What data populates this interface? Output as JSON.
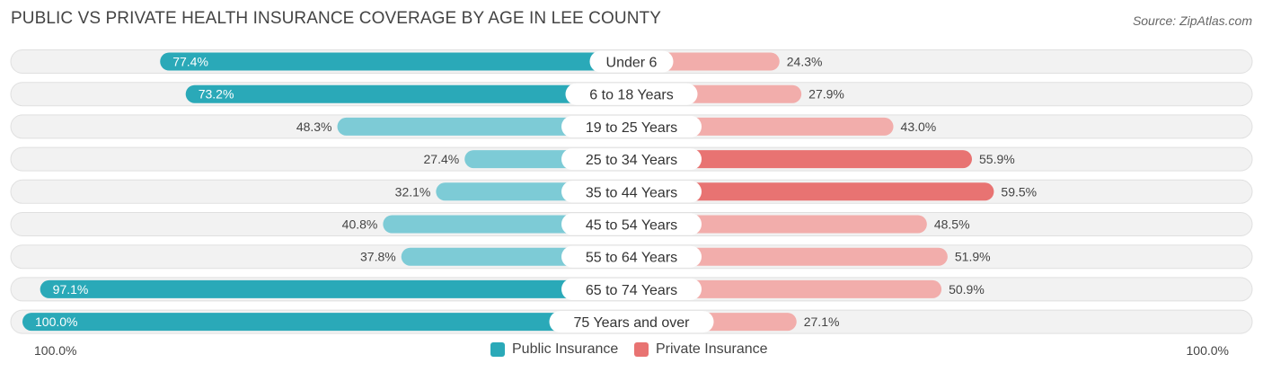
{
  "header": {
    "title": "PUBLIC VS PRIVATE HEALTH INSURANCE COVERAGE BY AGE IN LEE COUNTY",
    "source": "Source: ZipAtlas.com"
  },
  "axis": {
    "left_label": "100.0%",
    "right_label": "100.0%"
  },
  "legend": {
    "public": "Public Insurance",
    "private": "Private Insurance"
  },
  "colors": {
    "public_strong": "#2aa9b8",
    "public_light": "#7dcbd6",
    "private_strong": "#e87372",
    "private_light": "#f2adab",
    "track": "#f2f2f2",
    "track_border": "#e0e0e0"
  },
  "chart_data": {
    "type": "bar",
    "orientation": "diverging-horizontal",
    "title": "PUBLIC VS PRIVATE HEALTH INSURANCE COVERAGE BY AGE IN LEE COUNTY",
    "xlim": [
      -100,
      100
    ],
    "categories": [
      "Under 6",
      "6 to 18 Years",
      "19 to 25 Years",
      "25 to 34 Years",
      "35 to 44 Years",
      "45 to 54 Years",
      "55 to 64 Years",
      "65 to 74 Years",
      "75 Years and over"
    ],
    "series": [
      {
        "name": "Public Insurance",
        "values": [
          77.4,
          73.2,
          48.3,
          27.4,
          32.1,
          40.8,
          37.8,
          97.1,
          100.0
        ],
        "labels": [
          "77.4%",
          "73.2%",
          "48.3%",
          "27.4%",
          "32.1%",
          "40.8%",
          "37.8%",
          "97.1%",
          "100.0%"
        ]
      },
      {
        "name": "Private Insurance",
        "values": [
          24.3,
          27.9,
          43.0,
          55.9,
          59.5,
          48.5,
          51.9,
          50.9,
          27.1
        ],
        "labels": [
          "24.3%",
          "27.9%",
          "43.0%",
          "55.9%",
          "59.5%",
          "48.5%",
          "51.9%",
          "50.9%",
          "27.1%"
        ]
      }
    ],
    "legend": {
      "position": "bottom-center"
    },
    "grid": false
  }
}
